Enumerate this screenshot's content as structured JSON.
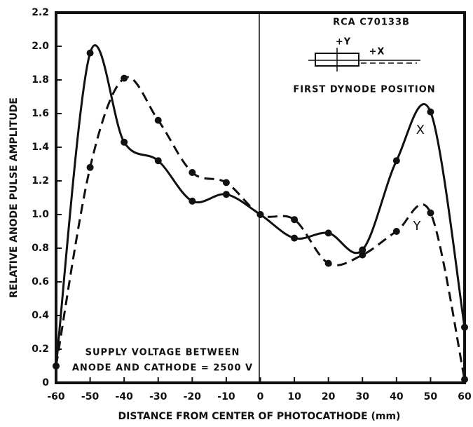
{
  "chart_data": {
    "type": "line",
    "xlabel": "DISTANCE FROM CENTER OF PHOTOCATHODE (mm)",
    "ylabel": "RELATIVE ANODE PULSE AMPLITUDE",
    "x": [
      -60,
      -50,
      -40,
      -30,
      -20,
      -10,
      0,
      10,
      20,
      30,
      40,
      50,
      60
    ],
    "series": [
      {
        "name": "X",
        "color": "#111111",
        "dash": false,
        "values": [
          0.1,
          1.96,
          1.43,
          1.32,
          1.08,
          1.12,
          1.0,
          0.86,
          0.89,
          0.79,
          1.32,
          1.61,
          0.33
        ]
      },
      {
        "name": "Y",
        "color": "#111111",
        "dash": true,
        "values": [
          0.1,
          1.28,
          1.81,
          1.56,
          1.25,
          1.19,
          1.0,
          0.97,
          0.71,
          0.76,
          0.9,
          1.01,
          0.02
        ]
      }
    ],
    "xlim": [
      -60,
      60
    ],
    "xticks": [
      -60,
      -50,
      -40,
      -30,
      -20,
      -10,
      0,
      10,
      20,
      30,
      40,
      50,
      60
    ],
    "ylim": [
      0,
      2.2
    ],
    "yticks": [
      0,
      0.2,
      0.4,
      0.6,
      0.8,
      {
        "value": 1,
        "label": "1.0"
      },
      1.2,
      1.4,
      1.6,
      1.8,
      {
        "value": 2,
        "label": "2.0"
      },
      2.2
    ],
    "annotations": [
      "RCA C70133B",
      "+Y",
      "+X",
      "FIRST DYNODE POSITION",
      "SUPPLY VOLTAGE BETWEEN",
      "ANODE AND CATHODE = 2500 V"
    ]
  }
}
